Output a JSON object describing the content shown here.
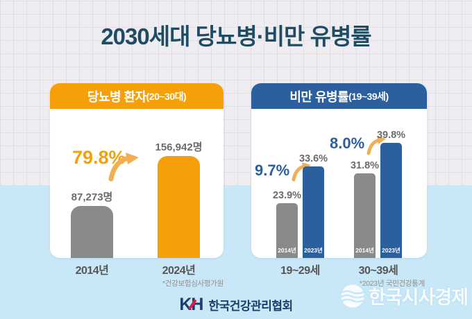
{
  "title": "2030세대 당뇨병·비만 유병률",
  "colors": {
    "orange": "#F5A009",
    "blue": "#2B5F9E",
    "gray_bar": "#8A8A8A",
    "title_color": "#1E4D63",
    "bg_top": "#EFEDF2",
    "bg_bottom": "#C9E8F7",
    "label_gray": "#6B6B6B",
    "navy_logo": "#1B3C6E",
    "red_logo": "#D6224C",
    "arrow_orange": "#F2AE55"
  },
  "left_panel": {
    "header_main": "당뇨병 환자",
    "header_sub": "(20~30대)",
    "change_label": "79.8%",
    "bars": [
      {
        "year": "2014년",
        "value": 87273,
        "value_label": "87,273명"
      },
      {
        "year": "2024년",
        "value": 156942,
        "value_label": "156,942명"
      }
    ],
    "footnote": "*건강보험심사평가원"
  },
  "right_panel": {
    "header_main": "비만 유병률",
    "header_sub": "(19~39세)",
    "groups": [
      {
        "label": "19~29세",
        "change_label": "9.7%",
        "bars": [
          {
            "year": "2014년",
            "value": 23.9,
            "value_label": "23.9%"
          },
          {
            "year": "2023년",
            "value": 33.6,
            "value_label": "33.6%"
          }
        ]
      },
      {
        "label": "30~39세",
        "change_label": "8.0%",
        "bars": [
          {
            "year": "2014년",
            "value": 31.8,
            "value_label": "31.8%"
          },
          {
            "year": "2023년",
            "value": 39.8,
            "value_label": "39.8%"
          }
        ]
      }
    ],
    "footnote": "*2023년 국민건강통계"
  },
  "footer": {
    "logo_kh": "KH",
    "org_name": "한국건강관리협회"
  },
  "watermark": "한국시사경제",
  "chart_data": [
    {
      "type": "bar",
      "title": "당뇨병 환자(20~30대)",
      "categories": [
        "2014년",
        "2024년"
      ],
      "values": [
        87273,
        156942
      ],
      "unit": "명",
      "data_labels": [
        "87,273명",
        "156,942명"
      ],
      "change_annotation": "79.8%",
      "source": "건강보험심사평가원",
      "bar_colors": [
        "#8A8A8A",
        "#F5A009"
      ],
      "grid": false,
      "legend_position": "none"
    },
    {
      "type": "bar",
      "title": "비만 유병률(19~39세)",
      "categories": [
        "19~29세",
        "30~39세"
      ],
      "series": [
        {
          "name": "2014년",
          "values": [
            23.9,
            31.8
          ]
        },
        {
          "name": "2023년",
          "values": [
            33.6,
            39.8
          ]
        }
      ],
      "unit": "%",
      "change_annotations": [
        "9.7%",
        "8.0%"
      ],
      "source": "2023년 국민건강통계",
      "bar_colors": [
        "#8A8A8A",
        "#2B5F9E"
      ],
      "grid": false,
      "legend_position": "inside-bars"
    }
  ]
}
